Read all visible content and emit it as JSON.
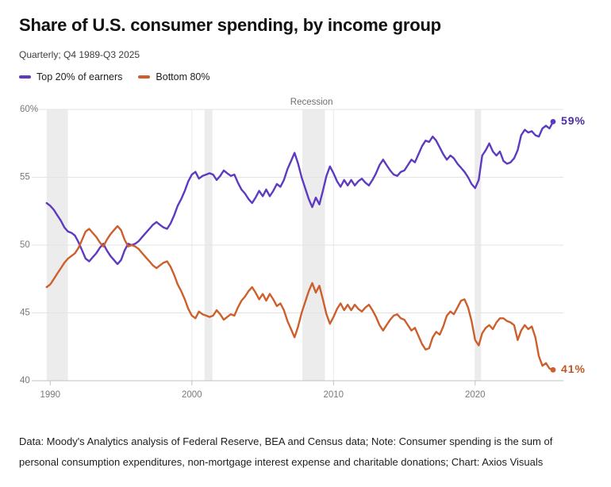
{
  "header": {
    "title": "Share of U.S. consumer spending, by income group",
    "subtitle": "Quarterly; Q4 1989-Q3 2025"
  },
  "colors": {
    "top20": "#5d3ac0",
    "bottom80": "#cd5f2c",
    "top20_label": "#4b2ba6",
    "bottom80_label": "#bf5626",
    "band": "#ececec",
    "grid": "#e3e3e3",
    "grid_vertical": "#ededed",
    "axis": "#c2c2c2",
    "tick_text": "#7a7a7a",
    "recession_text": "#6e6e6e"
  },
  "chart_data": {
    "type": "line",
    "title": "Share of U.S. consumer spending, by income group",
    "subtitle": "Quarterly; Q4 1989-Q3 2025",
    "x_start": 1989.75,
    "x_step": 0.25,
    "x_axis": {
      "ticks": [
        1990,
        2000,
        2010,
        2020
      ],
      "range": [
        1988.7,
        2026.0
      ]
    },
    "y_axis": {
      "ticks": [
        40,
        45,
        50,
        55,
        60
      ],
      "tick_labels": [
        "40",
        "45",
        "50",
        "55",
        "60%"
      ],
      "range": [
        40,
        60
      ],
      "unit": "%"
    },
    "recession_label": "Recession",
    "recession_label_year": 2008.45,
    "recessions": [
      [
        1989.75,
        1991.25
      ],
      [
        2000.9,
        2001.45
      ],
      [
        2007.8,
        2009.4
      ],
      [
        2020.0,
        2020.42
      ]
    ],
    "legend_position": "top-left",
    "series": [
      {
        "name": "Top 20% of earners",
        "color_key": "top20",
        "label_color_key": "top20_label",
        "end_label": "59%",
        "values": [
          53.1,
          52.9,
          52.6,
          52.2,
          51.8,
          51.3,
          51.0,
          50.9,
          50.7,
          50.2,
          49.6,
          49.0,
          48.8,
          49.1,
          49.4,
          49.8,
          50.1,
          49.6,
          49.2,
          48.9,
          48.6,
          48.9,
          49.6,
          50.1,
          50.0,
          50.1,
          50.3,
          50.6,
          50.9,
          51.2,
          51.5,
          51.7,
          51.5,
          51.3,
          51.2,
          51.6,
          52.2,
          52.9,
          53.4,
          54.0,
          54.7,
          55.2,
          55.4,
          54.9,
          55.1,
          55.2,
          55.3,
          55.2,
          54.8,
          55.1,
          55.5,
          55.3,
          55.1,
          55.2,
          54.6,
          54.1,
          53.8,
          53.4,
          53.1,
          53.5,
          54.0,
          53.6,
          54.1,
          53.6,
          54.0,
          54.5,
          54.3,
          54.8,
          55.6,
          56.2,
          56.8,
          56.0,
          55.0,
          54.2,
          53.4,
          52.8,
          53.5,
          53.0,
          54.0,
          55.1,
          55.8,
          55.3,
          54.7,
          54.3,
          54.8,
          54.4,
          54.8,
          54.4,
          54.7,
          54.9,
          54.6,
          54.4,
          54.8,
          55.3,
          55.9,
          56.3,
          55.9,
          55.5,
          55.2,
          55.1,
          55.4,
          55.5,
          55.9,
          56.3,
          56.1,
          56.7,
          57.3,
          57.7,
          57.6,
          58.0,
          57.7,
          57.2,
          56.7,
          56.3,
          56.6,
          56.4,
          56.0,
          55.7,
          55.4,
          55.0,
          54.5,
          54.2,
          54.8,
          56.6,
          57.0,
          57.5,
          56.9,
          56.6,
          56.9,
          56.2,
          56.0,
          56.1,
          56.4,
          57.0,
          58.1,
          58.5,
          58.3,
          58.4,
          58.1,
          58.0,
          58.6,
          58.8,
          58.6,
          59.1
        ]
      },
      {
        "name": "Bottom 80%",
        "color_key": "bottom80",
        "label_color_key": "bottom80_label",
        "end_label": "41%",
        "values": [
          46.9,
          47.1,
          47.5,
          47.9,
          48.3,
          48.7,
          49.0,
          49.2,
          49.4,
          49.8,
          50.4,
          51.0,
          51.2,
          50.9,
          50.6,
          50.2,
          49.9,
          50.4,
          50.8,
          51.1,
          51.4,
          51.1,
          50.4,
          49.9,
          50.0,
          49.9,
          49.7,
          49.4,
          49.1,
          48.8,
          48.5,
          48.3,
          48.5,
          48.7,
          48.8,
          48.4,
          47.8,
          47.1,
          46.6,
          46.0,
          45.3,
          44.8,
          44.6,
          45.1,
          44.9,
          44.8,
          44.7,
          44.8,
          45.2,
          44.9,
          44.5,
          44.7,
          44.9,
          44.8,
          45.4,
          45.9,
          46.2,
          46.6,
          46.9,
          46.5,
          46.0,
          46.4,
          45.9,
          46.4,
          46.0,
          45.5,
          45.7,
          45.2,
          44.4,
          43.8,
          43.2,
          44.0,
          45.0,
          45.8,
          46.6,
          47.2,
          46.5,
          47.0,
          46.0,
          44.9,
          44.2,
          44.7,
          45.3,
          45.7,
          45.2,
          45.6,
          45.2,
          45.6,
          45.3,
          45.1,
          45.4,
          45.6,
          45.2,
          44.7,
          44.1,
          43.7,
          44.1,
          44.5,
          44.8,
          44.9,
          44.6,
          44.5,
          44.1,
          43.7,
          43.9,
          43.3,
          42.7,
          42.3,
          42.4,
          43.2,
          43.6,
          43.4,
          44.0,
          44.8,
          45.1,
          44.9,
          45.4,
          45.9,
          46.0,
          45.4,
          44.4,
          43.0,
          42.6,
          43.5,
          43.9,
          44.1,
          43.8,
          44.3,
          44.6,
          44.6,
          44.4,
          44.3,
          44.1,
          43.0,
          43.7,
          44.1,
          43.8,
          44.0,
          43.2,
          41.8,
          41.1,
          41.3,
          40.9,
          40.8
        ]
      }
    ]
  },
  "footer": {
    "text": "Data: Moody's Analytics analysis of Federal Reserve, BEA and Census data; Note: Consumer spending is the sum of personal consumption expenditures, non-mortgage interest expense and charitable donations; Chart: Axios Visuals"
  }
}
